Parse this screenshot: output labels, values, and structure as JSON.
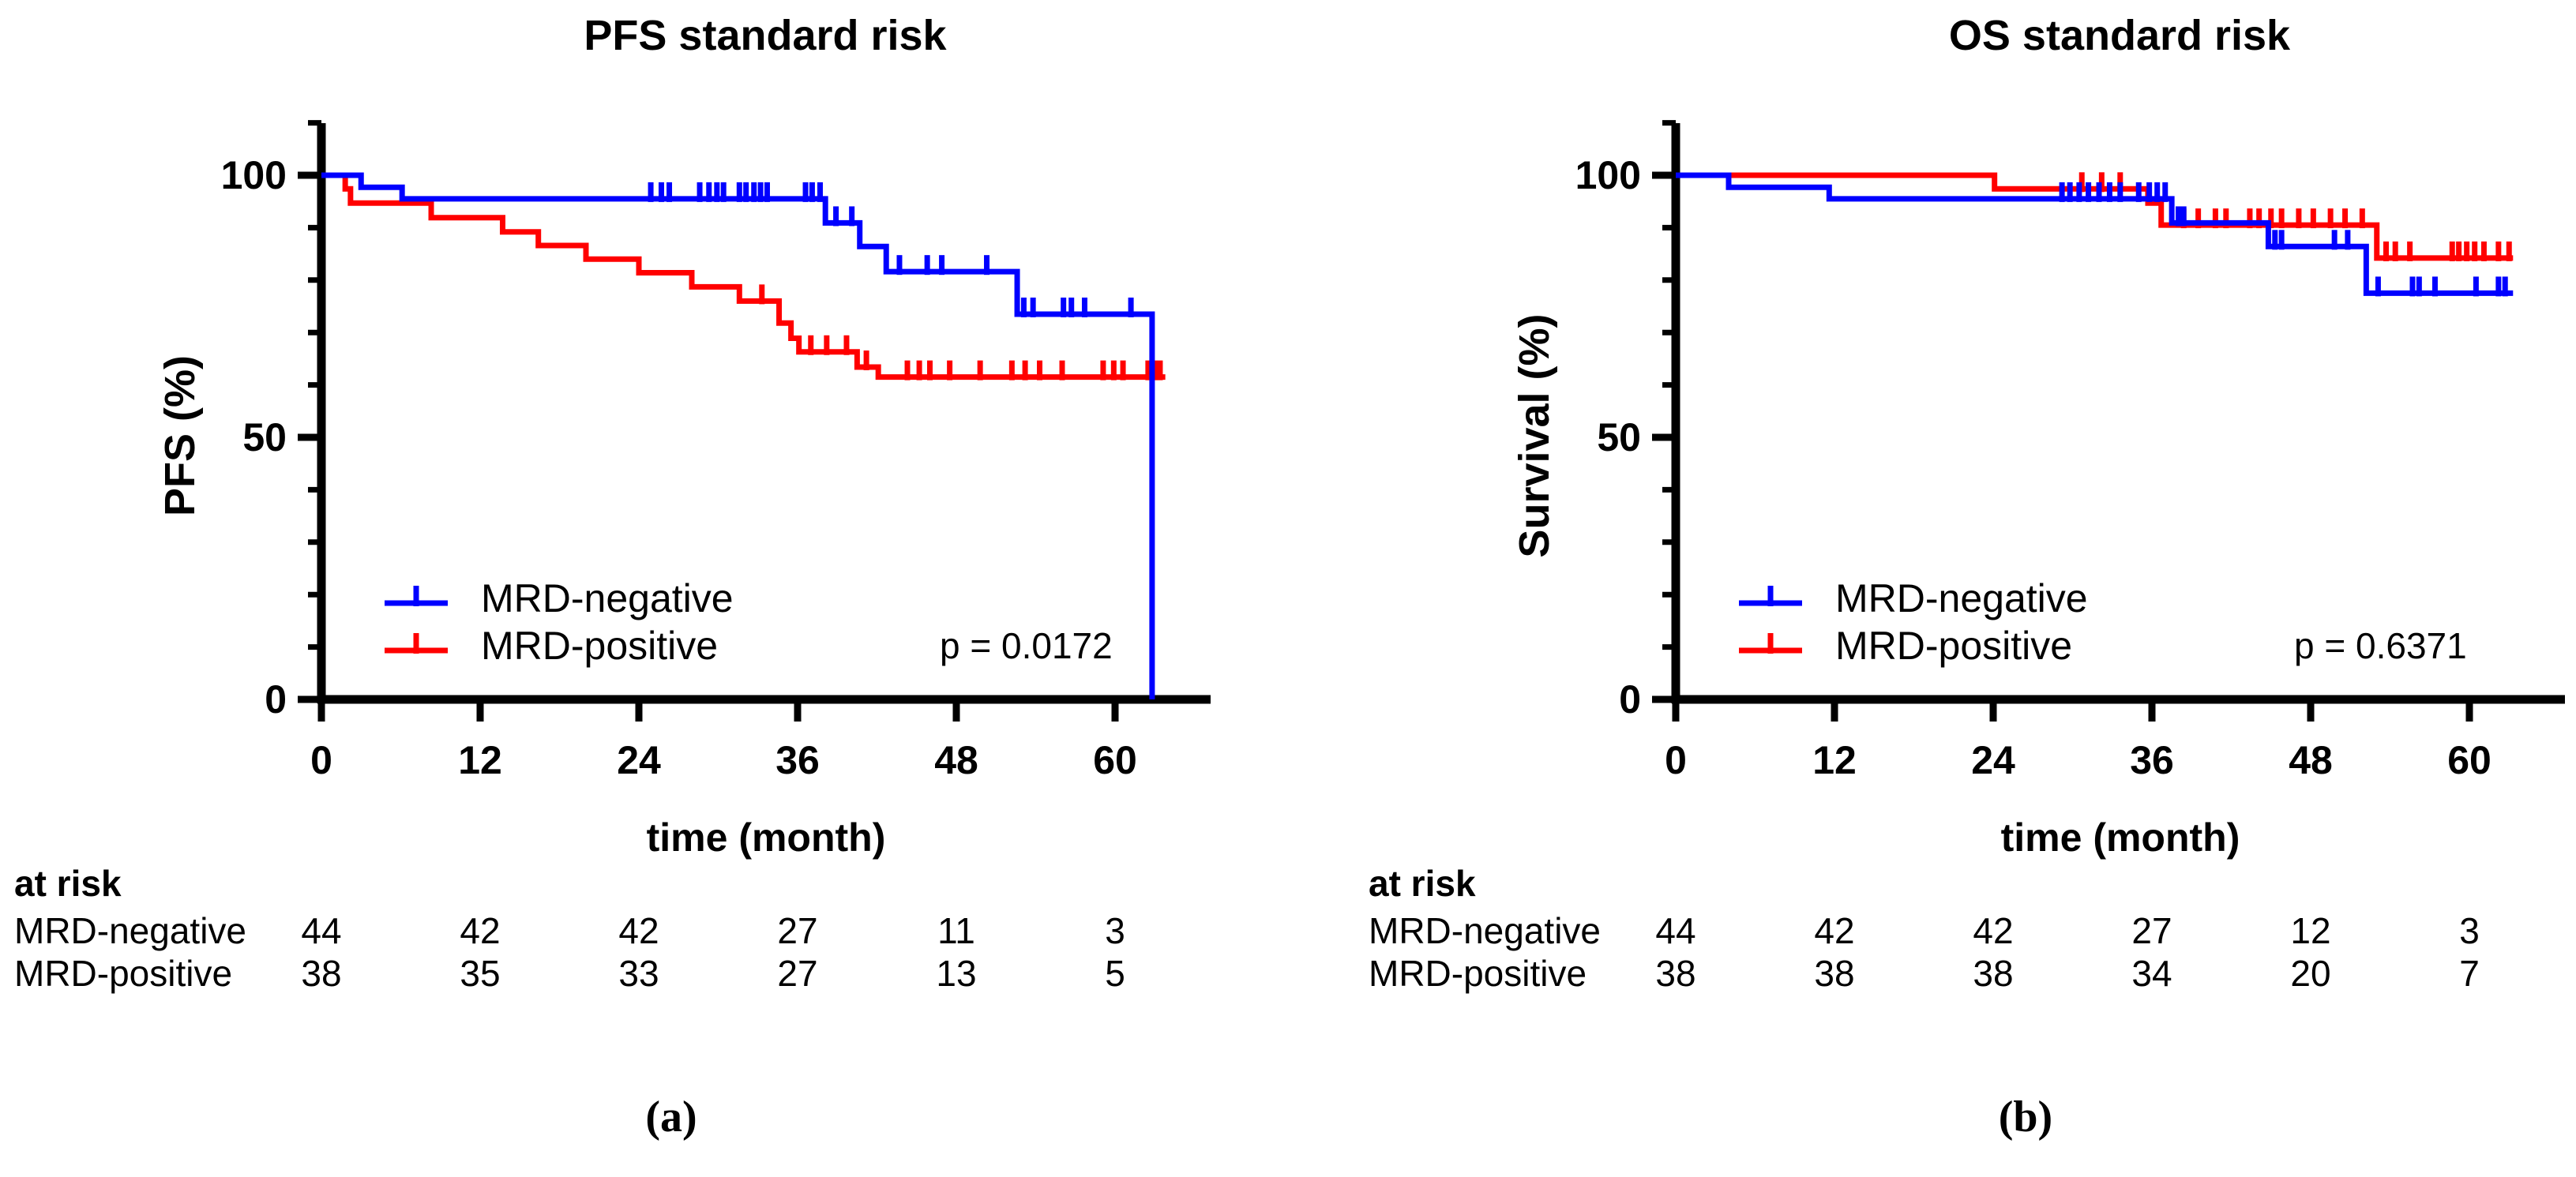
{
  "figure_colors": {
    "mrd_negative": "#0000ff",
    "mrd_positive": "#ff0000",
    "axis": "#000000",
    "background": "#ffffff"
  },
  "chart_data": [
    {
      "type": "line",
      "variant": "kaplan_meier_step",
      "panel_label": "(a)",
      "title": "PFS standard risk",
      "xlabel": "time (month)",
      "ylabel": "PFS (%)",
      "p_value_label": "p = 0.0172",
      "xlim": [
        0,
        67
      ],
      "ylim": [
        0,
        110
      ],
      "x_ticks": [
        0,
        12,
        24,
        36,
        48,
        60
      ],
      "y_ticks": [
        0,
        50,
        100
      ],
      "y_minor_step": 10,
      "grid": false,
      "legend_position": "inside-lower-left",
      "series": [
        {
          "name": "MRD-negative",
          "color": "#0000ff",
          "steps": [
            [
              0,
              100
            ],
            [
              3.0,
              97.7
            ],
            [
              6.1,
              95.5
            ],
            [
              38.1,
              90.9
            ],
            [
              40.7,
              86.4
            ],
            [
              42.7,
              81.6
            ],
            [
              52.6,
              73.5
            ],
            [
              62.8,
              0
            ]
          ],
          "end_x": 62.8,
          "censors": [
            24.9,
            25.7,
            26.3,
            28.6,
            29.3,
            29.9,
            30.4,
            31.6,
            32.1,
            32.7,
            33.2,
            33.7,
            36.6,
            37.1,
            37.7,
            38.9,
            40.1,
            43.7,
            45.8,
            46.9,
            50.3,
            53.1,
            53.8,
            56.1,
            56.7,
            57.7,
            61.2
          ]
        },
        {
          "name": "MRD-positive",
          "color": "#ff0000",
          "steps": [
            [
              0,
              100
            ],
            [
              1.8,
              97.4
            ],
            [
              2.2,
              94.7
            ],
            [
              8.3,
              91.9
            ],
            [
              13.7,
              89.2
            ],
            [
              16.4,
              86.6
            ],
            [
              20.0,
              84.0
            ],
            [
              24.0,
              81.4
            ],
            [
              28.0,
              78.7
            ],
            [
              31.6,
              76.0
            ],
            [
              34.6,
              71.8
            ],
            [
              35.5,
              68.9
            ],
            [
              36.1,
              66.3
            ],
            [
              40.5,
              63.4
            ],
            [
              42.1,
              61.5
            ]
          ],
          "end_x": 63.8,
          "censors": [
            33.3,
            37.0,
            38.2,
            39.7,
            41.2,
            44.3,
            45.2,
            46.0,
            47.5,
            49.8,
            52.2,
            53.2,
            54.3,
            56.0,
            59.1,
            59.9,
            60.6,
            62.5,
            63.0,
            63.4
          ]
        }
      ],
      "at_risk": {
        "header": "at risk",
        "time_points": [
          0,
          12,
          24,
          36,
          48,
          60
        ],
        "rows": [
          {
            "name": "MRD-negative",
            "values": [
              44,
              42,
              42,
              27,
              11,
              3
            ]
          },
          {
            "name": "MRD-positive",
            "values": [
              38,
              35,
              33,
              27,
              13,
              5
            ]
          }
        ]
      }
    },
    {
      "type": "line",
      "variant": "kaplan_meier_step",
      "panel_label": "(b)",
      "title": "OS standard risk",
      "xlabel": "time (month)",
      "ylabel": "Survival (%)",
      "p_value_label": "p = 0.6371",
      "xlim": [
        0,
        67
      ],
      "ylim": [
        0,
        110
      ],
      "x_ticks": [
        0,
        12,
        24,
        36,
        48,
        60
      ],
      "y_ticks": [
        0,
        50,
        100
      ],
      "y_minor_step": 10,
      "grid": false,
      "legend_position": "inside-lower-left",
      "series": [
        {
          "name": "MRD-negative",
          "color": "#0000ff",
          "steps": [
            [
              0,
              100
            ],
            [
              4.0,
              97.7
            ],
            [
              11.6,
              95.5
            ],
            [
              37.5,
              90.9
            ],
            [
              44.8,
              86.4
            ],
            [
              52.2,
              77.5
            ]
          ],
          "end_x": 63.3,
          "censors": [
            29.2,
            29.8,
            30.5,
            31.2,
            32.0,
            32.8,
            33.6,
            35.0,
            35.8,
            36.4,
            37.0,
            38.0,
            38.4,
            45.3,
            45.8,
            49.8,
            50.8,
            53.1,
            55.7,
            56.2,
            57.4,
            60.5,
            62.2,
            62.7
          ]
        },
        {
          "name": "MRD-positive",
          "color": "#ff0000",
          "steps": [
            [
              0,
              100
            ],
            [
              24.1,
              97.4
            ],
            [
              35.7,
              94.7
            ],
            [
              36.7,
              90.5
            ],
            [
              53.0,
              84.2
            ]
          ],
          "end_x": 63.3,
          "censors": [
            30.7,
            32.2,
            33.6,
            38.4,
            39.5,
            40.8,
            41.6,
            43.4,
            44.1,
            45.0,
            45.8,
            47.1,
            48.2,
            49.5,
            50.6,
            51.9,
            53.7,
            54.4,
            55.5,
            58.7,
            59.2,
            59.8,
            60.4,
            61.1,
            62.2,
            63.0
          ]
        }
      ],
      "at_risk": {
        "header": "at risk",
        "time_points": [
          0,
          12,
          24,
          36,
          48,
          60
        ],
        "rows": [
          {
            "name": "MRD-negative",
            "values": [
              44,
              42,
              42,
              27,
              12,
              3
            ]
          },
          {
            "name": "MRD-positive",
            "values": [
              38,
              38,
              38,
              34,
              20,
              7
            ]
          }
        ]
      }
    }
  ]
}
